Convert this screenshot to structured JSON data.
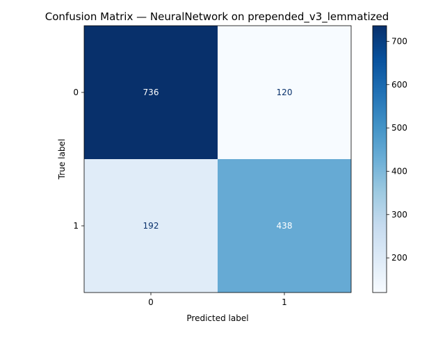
{
  "chart_data": {
    "type": "heatmap",
    "title": "Confusion Matrix — NeuralNetwork on prepended_v3_lemmatized",
    "xlabel": "Predicted label",
    "ylabel": "True label",
    "x_categories": [
      "0",
      "1"
    ],
    "y_categories": [
      "0",
      "1"
    ],
    "values": [
      [
        736,
        120
      ],
      [
        192,
        438
      ]
    ],
    "colormap": "Blues",
    "color_min": 120,
    "color_max": 736,
    "colorbar_ticks": [
      200,
      300,
      400,
      500,
      600,
      700
    ],
    "colors": {
      "low": "#f7fbff",
      "high": "#08306b",
      "text_light": "#ffffff",
      "text_dark": "#08306b"
    }
  }
}
